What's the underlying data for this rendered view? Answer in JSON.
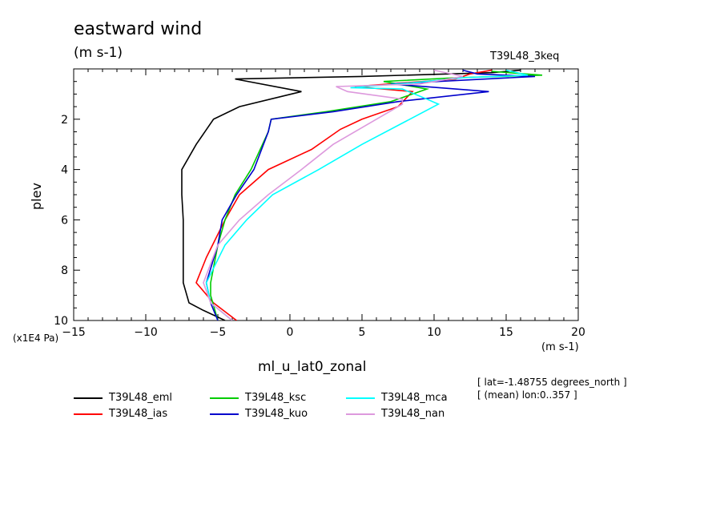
{
  "title": "eastward wind",
  "units": "(m s-1)",
  "run_label": "T39L48_3keq",
  "y_scale_label": "(x1E4 Pa)",
  "x_units": "(m s-1)",
  "variable_name": "ml_u_lat0_zonal",
  "annotations": [
    "[ lat=-1.48755 degrees_north ]",
    "[ (mean) lon:0..357 ]"
  ],
  "chart_data": {
    "type": "line",
    "title": "eastward wind",
    "ylabel": "plev",
    "xlabel": "(m s-1)",
    "y_scale": "x1E4 Pa",
    "xlim": [
      -15,
      20
    ],
    "ylim": [
      10,
      0
    ],
    "y_inverted": true,
    "grid": false,
    "legend_position": "bottom",
    "x_ticks": [
      "-15",
      "-10",
      "-5",
      "0",
      "5",
      "10",
      "15",
      "20"
    ],
    "y_ticks": [
      "2",
      "4",
      "6",
      "8",
      "10"
    ],
    "series": [
      {
        "name": "T39L48_eml",
        "color": "#000000",
        "points": [
          [
            -4.5,
            10
          ],
          [
            -6,
            9.6
          ],
          [
            -7,
            9.3
          ],
          [
            -7.4,
            8.5
          ],
          [
            -7.4,
            7
          ],
          [
            -7.4,
            6
          ],
          [
            -7.5,
            5
          ],
          [
            -7.5,
            4
          ],
          [
            -6.5,
            3
          ],
          [
            -5.3,
            2
          ],
          [
            -3.5,
            1.5
          ],
          [
            0.8,
            0.9
          ],
          [
            -3.8,
            0.4
          ],
          [
            5,
            0.3
          ],
          [
            14,
            0.15
          ],
          [
            16,
            0.05
          ]
        ]
      },
      {
        "name": "T39L48_ias",
        "color": "#ff0000",
        "points": [
          [
            -3.7,
            10
          ],
          [
            -5.3,
            9.3
          ],
          [
            -6.5,
            8.5
          ],
          [
            -5.8,
            7.5
          ],
          [
            -4.5,
            6
          ],
          [
            -3.5,
            5
          ],
          [
            -1.5,
            4
          ],
          [
            1.5,
            3.2
          ],
          [
            3.5,
            2.4
          ],
          [
            5,
            2
          ],
          [
            7.5,
            1.5
          ],
          [
            8.5,
            0.9
          ],
          [
            4.5,
            0.7
          ],
          [
            11.5,
            0.4
          ],
          [
            12.5,
            0.2
          ],
          [
            14,
            0.05
          ]
        ]
      },
      {
        "name": "T39L48_ksc",
        "color": "#00cc00",
        "points": [
          [
            -5,
            10
          ],
          [
            -5.5,
            9
          ],
          [
            -5.5,
            8.5
          ],
          [
            -5,
            7
          ],
          [
            -4.5,
            6
          ],
          [
            -3.8,
            5
          ],
          [
            -2.7,
            4
          ],
          [
            -1.5,
            2.5
          ],
          [
            -1.3,
            2
          ],
          [
            2.5,
            1.7
          ],
          [
            7,
            1.3
          ],
          [
            9.5,
            0.8
          ],
          [
            6.5,
            0.5
          ],
          [
            11.5,
            0.35
          ],
          [
            17.5,
            0.25
          ],
          [
            14,
            0.1
          ]
        ]
      },
      {
        "name": "T39L48_kuo",
        "color": "#0000cc",
        "points": [
          [
            -5,
            10
          ],
          [
            -5.5,
            9.3
          ],
          [
            -5.8,
            8.5
          ],
          [
            -5,
            7
          ],
          [
            -4.7,
            6
          ],
          [
            -3.7,
            5
          ],
          [
            -2.5,
            4
          ],
          [
            -1.5,
            2.5
          ],
          [
            -1.3,
            2
          ],
          [
            3,
            1.7
          ],
          [
            7.5,
            1.3
          ],
          [
            13.8,
            0.9
          ],
          [
            7,
            0.6
          ],
          [
            17,
            0.3
          ],
          [
            13,
            0.2
          ],
          [
            12,
            0.05
          ]
        ]
      },
      {
        "name": "T39L48_mca",
        "color": "#00ffff",
        "points": [
          [
            -4,
            10
          ],
          [
            -5.5,
            9.3
          ],
          [
            -5.8,
            8.5
          ],
          [
            -4.5,
            7
          ],
          [
            -3,
            6
          ],
          [
            -1.2,
            5
          ],
          [
            2,
            4
          ],
          [
            5,
            3
          ],
          [
            10.3,
            1.4
          ],
          [
            9.5,
            1.2
          ],
          [
            7.8,
            0.8
          ],
          [
            4.2,
            0.75
          ],
          [
            8.5,
            0.55
          ],
          [
            12,
            0.35
          ],
          [
            16.5,
            0.25
          ],
          [
            15,
            0.05
          ]
        ]
      },
      {
        "name": "T39L48_nan",
        "color": "#dd99dd",
        "points": [
          [
            -4,
            10
          ],
          [
            -5.5,
            9.3
          ],
          [
            -6,
            8.5
          ],
          [
            -5,
            7
          ],
          [
            -3.5,
            6
          ],
          [
            -1.5,
            5
          ],
          [
            0.8,
            4
          ],
          [
            3,
            3
          ],
          [
            6,
            2
          ],
          [
            7.8,
            1.4
          ],
          [
            7.8,
            1.2
          ],
          [
            4,
            0.9
          ],
          [
            3.2,
            0.7
          ],
          [
            9,
            0.6
          ],
          [
            12,
            0.3
          ],
          [
            10,
            0.05
          ]
        ]
      }
    ]
  }
}
